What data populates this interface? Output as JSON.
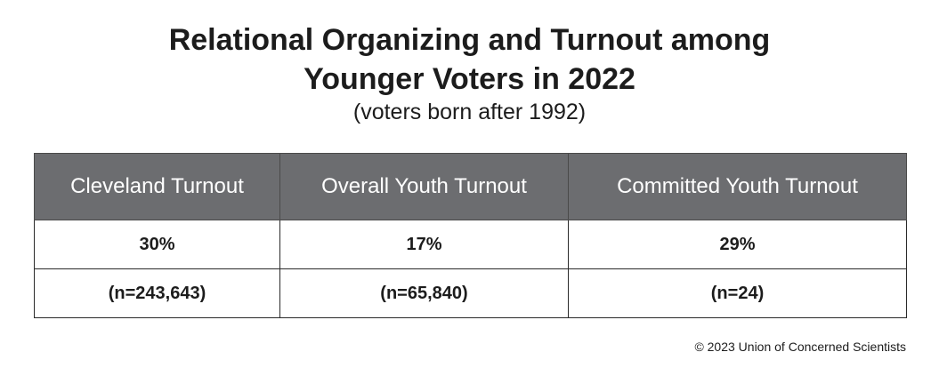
{
  "chart_data": {
    "type": "table",
    "title_line1": "Relational Organizing and Turnout among",
    "title_line2": "Younger Voters in 2022",
    "subtitle": "(voters born after 1992)",
    "columns": [
      "Cleveland Turnout",
      "Overall Youth Turnout",
      "Committed Youth Turnout"
    ],
    "rows": [
      [
        "30%",
        "17%",
        "29%"
      ],
      [
        "(n=243,643)",
        "(n=65,840)",
        "(n=24)"
      ]
    ],
    "values": [
      30,
      17,
      29
    ],
    "sample_sizes": [
      243643,
      65840,
      24
    ],
    "header_color": "#6c6d70"
  },
  "footer": {
    "copyright": "© 2023 Union of Concerned Scientists"
  }
}
